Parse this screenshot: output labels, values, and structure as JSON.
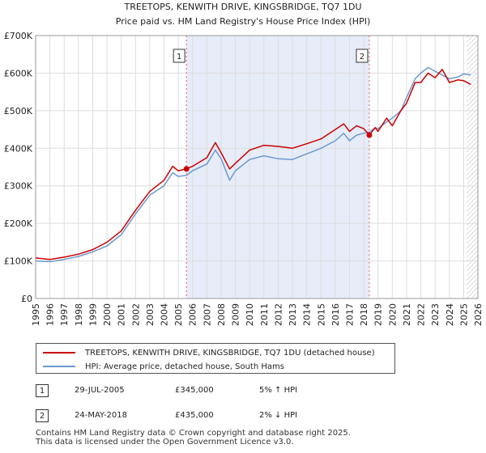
{
  "chart_data": {
    "type": "line",
    "title": "TREETOPS, KENWITH DRIVE, KINGSBRIDGE, TQ7 1DU",
    "subtitle": "Price paid vs. HM Land Registry's House Price Index (HPI)",
    "x_range": [
      1995,
      2026
    ],
    "ylim": [
      0,
      700000
    ],
    "x_ticks": [
      "1995",
      "1996",
      "1997",
      "1998",
      "1999",
      "2000",
      "2001",
      "2002",
      "2003",
      "2004",
      "2005",
      "2006",
      "2007",
      "2008",
      "2009",
      "2010",
      "2011",
      "2012",
      "2013",
      "2014",
      "2015",
      "2016",
      "2017",
      "2018",
      "2019",
      "2020",
      "2021",
      "2022",
      "2023",
      "2024",
      "2025",
      "2026"
    ],
    "y_ticks": [
      {
        "value": 0,
        "label": "£0"
      },
      {
        "value": 100000,
        "label": "£100K"
      },
      {
        "value": 200000,
        "label": "£200K"
      },
      {
        "value": 300000,
        "label": "£300K"
      },
      {
        "value": 400000,
        "label": "£400K"
      },
      {
        "value": 500000,
        "label": "£500K"
      },
      {
        "value": 600000,
        "label": "£600K"
      },
      {
        "value": 700000,
        "label": "£700K"
      }
    ],
    "highlight_range": [
      2005.57,
      2018.39
    ],
    "forecast_from": 2025.2,
    "series": [
      {
        "name": "TREETOPS, KENWITH DRIVE, KINGSBRIDGE, TQ7 1DU (detached house)",
        "color": "#cc0000",
        "points": [
          [
            1995,
            108000
          ],
          [
            1996,
            104000
          ],
          [
            1997,
            110000
          ],
          [
            1998,
            118000
          ],
          [
            1999,
            130000
          ],
          [
            2000,
            150000
          ],
          [
            2001,
            180000
          ],
          [
            2002,
            235000
          ],
          [
            2003,
            285000
          ],
          [
            2004,
            315000
          ],
          [
            2004.6,
            352000
          ],
          [
            2005,
            340000
          ],
          [
            2005.57,
            345000
          ],
          [
            2006,
            352000
          ],
          [
            2007,
            375000
          ],
          [
            2007.6,
            415000
          ],
          [
            2008,
            388000
          ],
          [
            2008.6,
            345000
          ],
          [
            2009,
            360000
          ],
          [
            2010,
            395000
          ],
          [
            2011,
            408000
          ],
          [
            2012,
            405000
          ],
          [
            2013,
            400000
          ],
          [
            2014,
            412000
          ],
          [
            2015,
            425000
          ],
          [
            2016,
            450000
          ],
          [
            2016.6,
            465000
          ],
          [
            2017,
            445000
          ],
          [
            2017.5,
            460000
          ],
          [
            2018,
            452000
          ],
          [
            2018.39,
            435000
          ],
          [
            2018.8,
            455000
          ],
          [
            2019,
            445000
          ],
          [
            2019.6,
            480000
          ],
          [
            2020,
            460000
          ],
          [
            2020.6,
            500000
          ],
          [
            2021,
            520000
          ],
          [
            2021.6,
            575000
          ],
          [
            2022,
            575000
          ],
          [
            2022.5,
            600000
          ],
          [
            2023,
            588000
          ],
          [
            2023.5,
            610000
          ],
          [
            2024,
            575000
          ],
          [
            2024.6,
            582000
          ],
          [
            2025,
            580000
          ],
          [
            2025.5,
            570000
          ]
        ]
      },
      {
        "name": "HPI: Average price, detached house, South Hams",
        "color": "#6d99cf",
        "points": [
          [
            1995,
            100000
          ],
          [
            1996,
            98000
          ],
          [
            1997,
            104000
          ],
          [
            1998,
            112000
          ],
          [
            1999,
            124000
          ],
          [
            2000,
            140000
          ],
          [
            2001,
            170000
          ],
          [
            2002,
            225000
          ],
          [
            2003,
            275000
          ],
          [
            2004,
            300000
          ],
          [
            2004.6,
            335000
          ],
          [
            2005,
            325000
          ],
          [
            2005.57,
            328000
          ],
          [
            2006,
            340000
          ],
          [
            2007,
            358000
          ],
          [
            2007.6,
            395000
          ],
          [
            2008,
            372000
          ],
          [
            2008.6,
            315000
          ],
          [
            2009,
            340000
          ],
          [
            2010,
            370000
          ],
          [
            2011,
            380000
          ],
          [
            2012,
            372000
          ],
          [
            2013,
            370000
          ],
          [
            2014,
            385000
          ],
          [
            2015,
            400000
          ],
          [
            2016,
            420000
          ],
          [
            2016.6,
            440000
          ],
          [
            2017,
            420000
          ],
          [
            2017.5,
            435000
          ],
          [
            2018,
            440000
          ],
          [
            2018.39,
            443000
          ],
          [
            2018.8,
            455000
          ],
          [
            2019,
            452000
          ],
          [
            2019.6,
            470000
          ],
          [
            2020,
            480000
          ],
          [
            2020.6,
            500000
          ],
          [
            2021,
            535000
          ],
          [
            2021.6,
            585000
          ],
          [
            2022,
            600000
          ],
          [
            2022.5,
            615000
          ],
          [
            2023,
            605000
          ],
          [
            2023.5,
            595000
          ],
          [
            2024,
            585000
          ],
          [
            2024.6,
            590000
          ],
          [
            2025,
            598000
          ],
          [
            2025.5,
            595000
          ]
        ]
      }
    ],
    "markers": [
      {
        "label": "1",
        "x": 2005.57,
        "y": 345000
      },
      {
        "label": "2",
        "x": 2018.39,
        "y": 435000
      }
    ]
  },
  "legend": [
    {
      "label": "TREETOPS, KENWITH DRIVE, KINGSBRIDGE, TQ7 1DU (detached house)",
      "color": "#cc0000"
    },
    {
      "label": "HPI: Average price, detached house, South Hams",
      "color": "#6d99cf"
    }
  ],
  "transactions": [
    {
      "num": "1",
      "date": "29-JUL-2005",
      "price": "£345,000",
      "hpi": "5% ↑ HPI"
    },
    {
      "num": "2",
      "date": "24-MAY-2018",
      "price": "£435,000",
      "hpi": "2% ↓ HPI"
    }
  ],
  "footer": {
    "line1": "Contains HM Land Registry data © Crown copyright and database right 2025.",
    "line2": "This data is licensed under the Open Government Licence v3.0."
  }
}
